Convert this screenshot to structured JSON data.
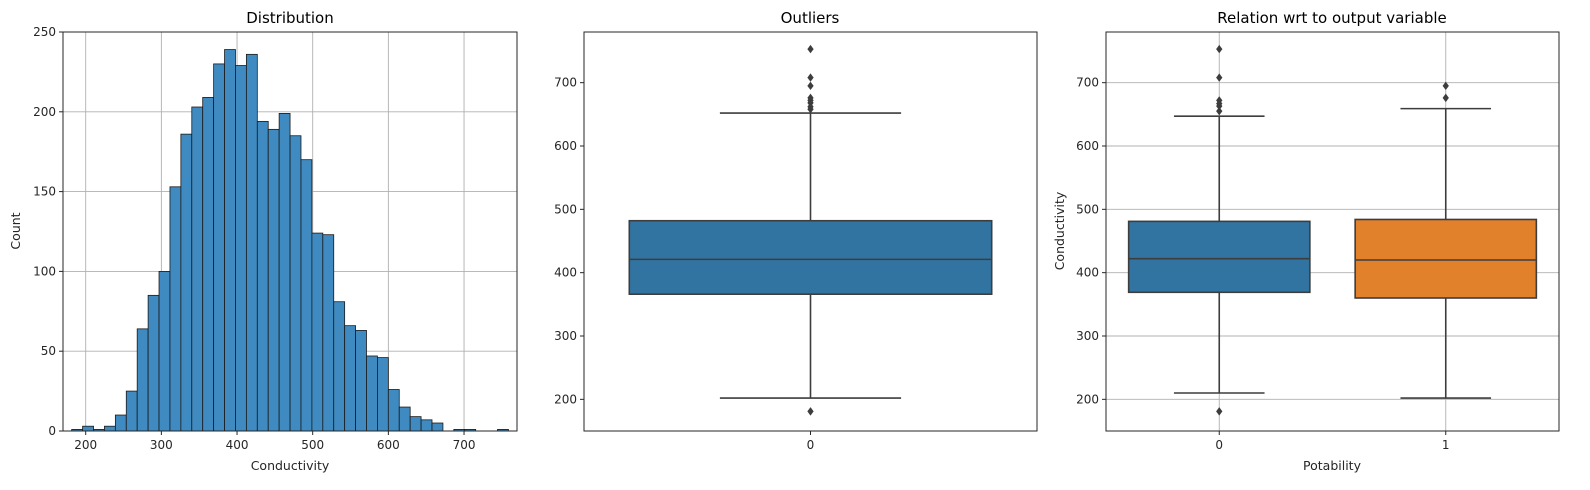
{
  "chart_data": [
    {
      "type": "histogram",
      "title": "Distribution",
      "xlabel": "Conductivity",
      "ylabel": "Count",
      "grid": true,
      "xlim": [
        170,
        770
      ],
      "ylim": [
        0,
        250
      ],
      "xticks": [
        200,
        300,
        400,
        500,
        600,
        700
      ],
      "yticks": [
        0,
        50,
        100,
        150,
        200,
        250
      ],
      "bar_color": "#3f8bc1",
      "bin_width": 14.43,
      "bins_start": 181.48,
      "counts": [
        1,
        3,
        1,
        3,
        10,
        25,
        64,
        85,
        100,
        153,
        186,
        203,
        209,
        230,
        239,
        229,
        236,
        194,
        189,
        199,
        185,
        170,
        124,
        123,
        81,
        66,
        63,
        47,
        46,
        26,
        15,
        9,
        7,
        5,
        0,
        1,
        1,
        0,
        0,
        1
      ]
    },
    {
      "type": "boxplot",
      "title": "Outliers",
      "xlabel": "",
      "ylabel": "",
      "grid": false,
      "ylim": [
        150,
        780
      ],
      "yticks": [
        200,
        300,
        400,
        500,
        600,
        700
      ],
      "categories": [
        "0"
      ],
      "boxes": [
        {
          "category": "0",
          "color": "#3274a1",
          "whisker_low": 202,
          "q1": 366,
          "median": 421,
          "q3": 482,
          "whisker_high": 652,
          "outliers": [
            181,
            658,
            662,
            668,
            672,
            676,
            695,
            708,
            753
          ]
        }
      ]
    },
    {
      "type": "boxplot",
      "title": "Relation wrt to output variable",
      "xlabel": "Potability",
      "ylabel": "Conductivity",
      "grid": true,
      "ylim": [
        150,
        780
      ],
      "yticks": [
        200,
        300,
        400,
        500,
        600,
        700
      ],
      "categories": [
        "0",
        "1"
      ],
      "boxes": [
        {
          "category": "0",
          "color": "#3274a1",
          "whisker_low": 210,
          "q1": 369,
          "median": 422,
          "q3": 481,
          "whisker_high": 647,
          "outliers": [
            181,
            655,
            663,
            667,
            672,
            708,
            753
          ]
        },
        {
          "category": "1",
          "color": "#e1812c",
          "whisker_low": 202,
          "q1": 360,
          "median": 420,
          "q3": 484,
          "whisker_high": 659,
          "outliers": [
            676,
            695
          ]
        }
      ]
    }
  ]
}
